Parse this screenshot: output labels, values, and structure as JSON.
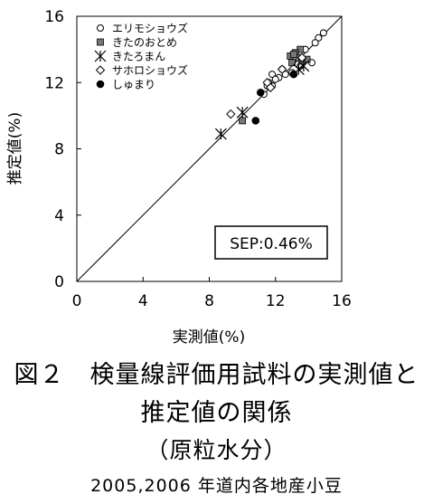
{
  "chart_data": {
    "type": "scatter",
    "xlabel": "実測値(%)",
    "ylabel": "推定値(%)",
    "xlim": [
      0,
      16
    ],
    "ylim": [
      0,
      16
    ],
    "x_ticks": [
      "0",
      "4",
      "8",
      "12",
      "16"
    ],
    "y_ticks": [
      "0",
      "4",
      "8",
      "12",
      "16"
    ],
    "reference_line": "y = x",
    "legend_position": "top-left",
    "annotation": "SEP:0.46%",
    "series": [
      {
        "name": "エリモショウズ",
        "marker": "open-circle",
        "points": [
          [
            14.9,
            15.0
          ],
          [
            14.6,
            14.7
          ],
          [
            14.4,
            14.4
          ],
          [
            13.8,
            14.0
          ],
          [
            12.2,
            12.3
          ],
          [
            11.8,
            12.5
          ],
          [
            12.0,
            12.2
          ],
          [
            11.5,
            11.8
          ],
          [
            11.8,
            11.8
          ],
          [
            12.6,
            12.5
          ],
          [
            13.0,
            12.6
          ],
          [
            13.5,
            13.0
          ],
          [
            14.2,
            13.2
          ],
          [
            11.3,
            11.3
          ],
          [
            11.6,
            12.0
          ],
          [
            12.4,
            12.8
          ]
        ]
      },
      {
        "name": "きたのおとめ",
        "marker": "filled-square",
        "points": [
          [
            13.5,
            14.0
          ],
          [
            13.2,
            13.8
          ],
          [
            13.4,
            13.5
          ],
          [
            13.0,
            13.2
          ],
          [
            13.9,
            13.4
          ],
          [
            12.9,
            13.6
          ],
          [
            13.6,
            13.3
          ],
          [
            10.0,
            9.7
          ],
          [
            13.1,
            13.7
          ]
        ]
      },
      {
        "name": "きたろまん",
        "marker": "asterisk",
        "points": [
          [
            8.7,
            8.9
          ],
          [
            10.0,
            10.2
          ],
          [
            13.7,
            13.0
          ],
          [
            13.4,
            12.8
          ]
        ]
      },
      {
        "name": "サホロショウズ",
        "marker": "open-diamond",
        "points": [
          [
            9.3,
            10.1
          ],
          [
            11.5,
            12.0
          ],
          [
            11.7,
            11.7
          ],
          [
            12.4,
            12.8
          ],
          [
            13.6,
            13.5
          ]
        ]
      },
      {
        "name": "しゅまり",
        "marker": "filled-circle",
        "points": [
          [
            11.1,
            11.4
          ],
          [
            10.8,
            9.7
          ],
          [
            13.1,
            12.5
          ]
        ]
      }
    ]
  },
  "caption": {
    "line1": "図２　検量線評価用試料の実測値と",
    "line2": "推定値の関係",
    "line3": "（原粒水分）",
    "line4": "2005,2006 年道内各地産小豆"
  }
}
